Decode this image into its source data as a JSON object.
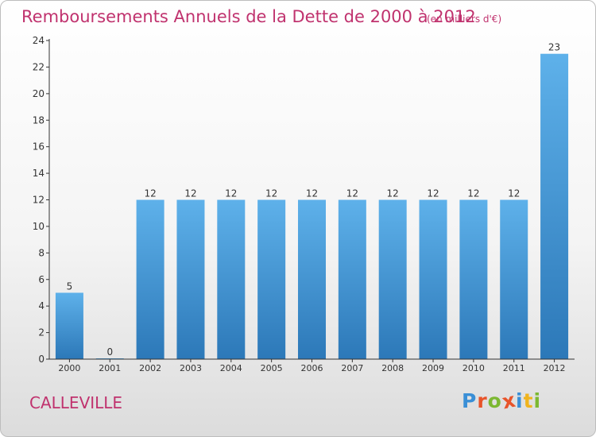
{
  "header": {
    "title": "Remboursements Annuels de la Dette de 2000 à 2012",
    "subtitle": "(en milliers d'€)"
  },
  "footer": {
    "commune": "CALLEVILLE",
    "logo_text": "Proxiti",
    "logo_colors": [
      "#3a8fd6",
      "#e8542a",
      "#7cb832",
      "#e8542a",
      "#3a8fd6",
      "#f0b41e",
      "#7cb832"
    ]
  },
  "chart_data": {
    "type": "bar",
    "title": "Remboursements Annuels de la Dette de 2000 à 2012",
    "subtitle": "(en milliers d'€)",
    "categories": [
      "2000",
      "2001",
      "2002",
      "2003",
      "2004",
      "2005",
      "2006",
      "2007",
      "2008",
      "2009",
      "2010",
      "2011",
      "2012"
    ],
    "values": [
      5,
      0,
      12,
      12,
      12,
      12,
      12,
      12,
      12,
      12,
      12,
      12,
      23
    ],
    "data_labels": [
      "5",
      "0",
      "12",
      "12",
      "12",
      "12",
      "12",
      "12",
      "12",
      "12",
      "12",
      "12",
      "23"
    ],
    "yticks": [
      "0",
      "2",
      "4",
      "6",
      "8",
      "10",
      "12",
      "14",
      "16",
      "18",
      "20",
      "22",
      "24"
    ],
    "ylim": [
      0,
      24
    ],
    "grid": false,
    "bar_color_top": "#5eb1ea",
    "bar_color_bottom": "#2c78b8"
  }
}
